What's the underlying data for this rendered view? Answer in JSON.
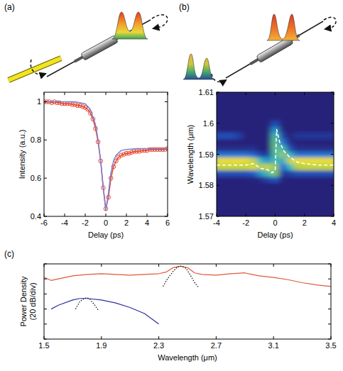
{
  "chart_data": [
    {
      "type": "line",
      "panel": "(a)",
      "xlabel": "Delay (ps)",
      "ylabel": "Intensity (a.u.)",
      "xlim": [
        -6,
        6
      ],
      "ylim": [
        0.4,
        1.05
      ],
      "xticks": [
        -6,
        -4,
        -2,
        0,
        2,
        4,
        6
      ],
      "yticks": [
        0.4,
        0.6,
        0.8,
        1
      ],
      "series": [
        {
          "color": "#e8472b",
          "marker": "circle",
          "line_style": "solid",
          "x": [
            -6,
            -5.75,
            -5.5,
            -5.25,
            -5,
            -4.75,
            -4.5,
            -4.25,
            -4,
            -3.75,
            -3.5,
            -3.25,
            -3,
            -2.75,
            -2.5,
            -2.25,
            -2,
            -1.75,
            -1.5,
            -1.25,
            -1,
            -0.75,
            -0.5,
            -0.25,
            0,
            0.25,
            0.5,
            0.75,
            1,
            1.25,
            1.5,
            1.75,
            2,
            2.25,
            2.5,
            2.75,
            3,
            3.25,
            3.5,
            3.75,
            4,
            4.25,
            4.5,
            4.75,
            5,
            5.25,
            5.5,
            5.75,
            6
          ],
          "values": [
            1,
            1,
            1,
            0.995,
            1,
            0.995,
            0.995,
            0.99,
            0.99,
            0.99,
            0.99,
            0.985,
            0.985,
            0.98,
            0.98,
            0.975,
            0.97,
            0.96,
            0.94,
            0.91,
            0.86,
            0.79,
            0.69,
            0.55,
            0.44,
            0.5,
            0.6,
            0.66,
            0.69,
            0.71,
            0.72,
            0.725,
            0.73,
            0.73,
            0.735,
            0.74,
            0.74,
            0.74,
            0.745,
            0.745,
            0.745,
            0.75,
            0.75,
            0.75,
            0.75,
            0.75,
            0.75,
            0.75,
            0.755
          ]
        },
        {
          "color": "#7b7fd6",
          "line_style": "solid",
          "x": [
            -6,
            -3,
            -2,
            -1.5,
            -1,
            -0.75,
            -0.5,
            -0.25,
            0,
            0.25,
            0.5,
            0.75,
            1,
            1.5,
            2,
            3,
            6
          ],
          "values": [
            1,
            1,
            0.99,
            0.96,
            0.88,
            0.8,
            0.69,
            0.55,
            0.43,
            0.52,
            0.63,
            0.69,
            0.72,
            0.745,
            0.75,
            0.755,
            0.755
          ]
        }
      ]
    },
    {
      "type": "heatmap",
      "panel": "(b)",
      "xlabel": "Delay (ps)",
      "ylabel": "Wavelength (μm)",
      "xlim": [
        -4,
        4
      ],
      "ylim": [
        1.57,
        1.61
      ],
      "xticks": [
        -4,
        -2,
        0,
        2,
        4
      ],
      "yticks": [
        1.57,
        1.58,
        1.59,
        1.6,
        1.61
      ],
      "x": [
        -4,
        -3.5,
        -3,
        -2.5,
        -2,
        -1.5,
        -1,
        -0.5,
        0,
        0.5,
        1,
        1.5,
        2,
        2.5,
        3,
        3.5,
        4
      ],
      "y": [
        1.57,
        1.572,
        1.574,
        1.576,
        1.578,
        1.58,
        1.582,
        1.584,
        1.586,
        1.588,
        1.59,
        1.592,
        1.594,
        1.596,
        1.598,
        1.6,
        1.602,
        1.604,
        1.606,
        1.608,
        1.61
      ],
      "zlim": [
        0,
        1
      ],
      "cells": [
        [
          0,
          0,
          0,
          0,
          0,
          0,
          0,
          0,
          0,
          0,
          0,
          0,
          0,
          0,
          0,
          0,
          0
        ],
        [
          0,
          0,
          0,
          0,
          0,
          0,
          0,
          0,
          0,
          0,
          0,
          0,
          0,
          0,
          0,
          0,
          0
        ],
        [
          0,
          0,
          0,
          0,
          0,
          0,
          0,
          0,
          0,
          0,
          0,
          0,
          0,
          0,
          0,
          0,
          0
        ],
        [
          0,
          0,
          0,
          0,
          0,
          0,
          0,
          0,
          0,
          0,
          0,
          0,
          0,
          0,
          0,
          0,
          0
        ],
        [
          0,
          0,
          0,
          0,
          0,
          0,
          0,
          0,
          0,
          0,
          0,
          0,
          0,
          0,
          0,
          0,
          0
        ],
        [
          0,
          0,
          0,
          0,
          0,
          0,
          0,
          0,
          0,
          0,
          0,
          0,
          0,
          0,
          0,
          0,
          0
        ],
        [
          0,
          0,
          0,
          0,
          0,
          0,
          0.05,
          0.15,
          0.25,
          0,
          0,
          0,
          0,
          0,
          0,
          0,
          0
        ],
        [
          0.2,
          0.2,
          0.2,
          0.2,
          0.2,
          0.25,
          0.45,
          0.6,
          0.7,
          0.1,
          0.15,
          0.2,
          0.2,
          0.2,
          0.2,
          0.2,
          0.2
        ],
        [
          0.85,
          0.85,
          0.85,
          0.85,
          0.85,
          0.9,
          0.8,
          0.85,
          0.75,
          0.3,
          0.55,
          0.8,
          0.85,
          0.85,
          0.85,
          0.85,
          0.85
        ],
        [
          0.95,
          0.95,
          0.95,
          0.95,
          0.95,
          0.85,
          0.55,
          0.45,
          0.6,
          0.5,
          0.85,
          0.95,
          0.95,
          0.95,
          0.95,
          0.95,
          0.95
        ],
        [
          0.35,
          0.35,
          0.35,
          0.35,
          0.35,
          0.3,
          0.15,
          0.1,
          0.6,
          0.75,
          0.55,
          0.35,
          0.35,
          0.35,
          0.35,
          0.35,
          0.35
        ],
        [
          0.05,
          0.05,
          0.05,
          0.05,
          0.05,
          0.05,
          0,
          0,
          0.65,
          0.6,
          0.2,
          0.05,
          0.05,
          0.05,
          0.05,
          0.05,
          0.05
        ],
        [
          0,
          0,
          0,
          0,
          0,
          0,
          0,
          0,
          0.65,
          0.35,
          0.05,
          0,
          0,
          0,
          0,
          0,
          0
        ],
        [
          0.2,
          0.2,
          0.2,
          0.15,
          0,
          0,
          0,
          0,
          0.6,
          0.15,
          0,
          0.1,
          0.1,
          0.1,
          0.1,
          0.1,
          0.1
        ],
        [
          0,
          0,
          0,
          0,
          0,
          0,
          0,
          0,
          0.45,
          0,
          0,
          0,
          0,
          0,
          0,
          0,
          0
        ],
        [
          0,
          0,
          0,
          0,
          0,
          0,
          0,
          0,
          0.2,
          0,
          0,
          0,
          0,
          0,
          0,
          0,
          0
        ],
        [
          0,
          0,
          0,
          0,
          0,
          0,
          0,
          0,
          0,
          0,
          0,
          0,
          0,
          0,
          0,
          0,
          0
        ],
        [
          0,
          0,
          0,
          0,
          0,
          0,
          0,
          0,
          0,
          0,
          0,
          0,
          0,
          0,
          0,
          0,
          0
        ],
        [
          0,
          0,
          0,
          0,
          0,
          0,
          0,
          0,
          0,
          0,
          0,
          0,
          0,
          0,
          0,
          0,
          0
        ],
        [
          0,
          0,
          0,
          0,
          0,
          0,
          0,
          0,
          0,
          0,
          0,
          0,
          0,
          0,
          0,
          0,
          0
        ],
        [
          0,
          0,
          0,
          0,
          0,
          0,
          0,
          0,
          0,
          0,
          0,
          0,
          0,
          0,
          0,
          0,
          0
        ]
      ],
      "series": [
        {
          "type": "line",
          "color": "#ffffff",
          "line_style": "dashed",
          "x": [
            -4,
            -3,
            -2,
            -1.5,
            -1,
            -0.5,
            -0.2,
            0,
            0.1,
            0.3,
            0.6,
            1,
            1.5,
            2,
            3,
            4
          ],
          "values": [
            1.5865,
            1.5865,
            1.5865,
            1.587,
            1.5855,
            1.585,
            1.584,
            1.585,
            1.598,
            1.594,
            1.591,
            1.589,
            1.5875,
            1.587,
            1.5865,
            1.5865
          ]
        }
      ]
    },
    {
      "type": "line",
      "panel": "(c)",
      "xlabel": "Wavelength (μm)",
      "ylabel": "Power Density (20 dB/div)",
      "xlim": [
        1.5,
        3.5
      ],
      "ylim": [
        0,
        100
      ],
      "xticks": [
        1.5,
        1.9,
        2.3,
        2.7,
        3.1,
        3.5
      ],
      "yticks": [
        0,
        20,
        40,
        60,
        80,
        100
      ],
      "tick_labels": "x",
      "series": [
        {
          "color": "#e0583a",
          "line_style": "solid",
          "x": [
            1.5,
            1.55,
            1.6,
            1.7,
            1.8,
            1.9,
            2,
            2.1,
            2.2,
            2.3,
            2.35,
            2.4,
            2.45,
            2.5,
            2.55,
            2.6,
            2.7,
            2.8,
            2.9,
            2.95,
            3,
            3.1,
            3.2,
            3.3,
            3.4,
            3.5
          ],
          "values": [
            82,
            78,
            80,
            84,
            86,
            87,
            86,
            85,
            86,
            87,
            89,
            95,
            97,
            95,
            88,
            86,
            85,
            87,
            88,
            86,
            84,
            82,
            79,
            75,
            72,
            70
          ]
        },
        {
          "color": "#000000",
          "line_style": "dotted",
          "x": [
            2.33,
            2.36,
            2.4,
            2.43,
            2.46,
            2.49,
            2.52,
            2.55,
            2.58
          ],
          "values": [
            70,
            80,
            90,
            96,
            97,
            94,
            85,
            75,
            68
          ]
        },
        {
          "color": "#2d2f9a",
          "line_style": "solid",
          "x": [
            1.55,
            1.6,
            1.7,
            1.75,
            1.8,
            1.9,
            2,
            2.1,
            2.2,
            2.3
          ],
          "values": [
            40,
            45,
            52,
            54,
            54,
            52,
            48,
            42,
            34,
            20
          ]
        },
        {
          "color": "#000000",
          "line_style": "dotted",
          "x": [
            1.72,
            1.75,
            1.78,
            1.8,
            1.82,
            1.85,
            1.88
          ],
          "values": [
            40,
            50,
            54,
            55,
            53,
            46,
            38
          ]
        }
      ]
    }
  ]
}
